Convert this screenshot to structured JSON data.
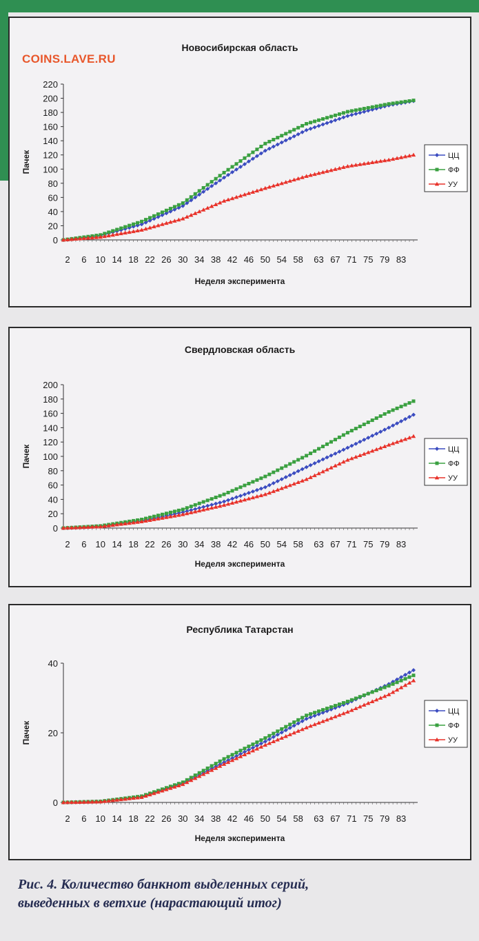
{
  "watermark": "COINS.LAVE.RU",
  "caption": {
    "line1": "Рис. 4. Количество банкнот выделенных серий,",
    "line2": "выведенных в ветхие (нарастающий итог)"
  },
  "colors": {
    "cc": "#3b4cc0",
    "ff": "#3aa040",
    "uu": "#e8322a",
    "green_band": "#2f8f52"
  },
  "chart_data": [
    {
      "type": "line",
      "title": "Новосибирская область",
      "xlabel": "Неделя эксперимента",
      "ylabel": "Пачек",
      "ylim": [
        0,
        220
      ],
      "yticks": [
        0,
        20,
        40,
        60,
        80,
        100,
        120,
        140,
        160,
        180,
        200,
        220
      ],
      "xticklabels": [
        "2",
        "6",
        "10",
        "14",
        "18",
        "22",
        "26",
        "30",
        "34",
        "38",
        "42",
        "46",
        "50",
        "54",
        "58",
        "63",
        "67",
        "71",
        "75",
        "79",
        "83"
      ],
      "x_anchors": [
        1,
        10,
        20,
        30,
        40,
        50,
        60,
        70,
        80,
        86
      ],
      "legend_position": "right",
      "series": [
        {
          "name": "ЦЦ",
          "marker": "diamond",
          "anchors": [
            0,
            6,
            22,
            48,
            88,
            126,
            155,
            175,
            190,
            196
          ]
        },
        {
          "name": "ФФ",
          "marker": "square",
          "anchors": [
            0,
            7,
            26,
            52,
            95,
            136,
            164,
            181,
            192,
            197
          ]
        },
        {
          "name": "УУ",
          "marker": "triangle",
          "anchors": [
            0,
            4,
            14,
            30,
            55,
            73,
            90,
            104,
            113,
            120
          ]
        }
      ]
    },
    {
      "type": "line",
      "title": "Свердловская область",
      "xlabel": "Неделя эксперимента",
      "ylabel": "Пачек",
      "ylim": [
        0,
        200
      ],
      "yticks": [
        0,
        20,
        40,
        60,
        80,
        100,
        120,
        140,
        160,
        180,
        200
      ],
      "xticklabels": [
        "2",
        "6",
        "10",
        "14",
        "18",
        "22",
        "26",
        "30",
        "34",
        "38",
        "42",
        "46",
        "50",
        "54",
        "58",
        "63",
        "67",
        "71",
        "75",
        "79",
        "83"
      ],
      "x_anchors": [
        1,
        10,
        20,
        30,
        40,
        50,
        60,
        70,
        80,
        86
      ],
      "legend_position": "right",
      "series": [
        {
          "name": "ЦЦ",
          "marker": "diamond",
          "anchors": [
            0,
            2,
            10,
            22,
            37,
            57,
            85,
            112,
            140,
            158
          ]
        },
        {
          "name": "ФФ",
          "marker": "square",
          "anchors": [
            0,
            3,
            12,
            26,
            47,
            72,
            101,
            133,
            162,
            177
          ]
        },
        {
          "name": "УУ",
          "marker": "triangle",
          "anchors": [
            0,
            2,
            9,
            19,
            32,
            47,
            68,
            95,
            116,
            128
          ]
        }
      ]
    },
    {
      "type": "line",
      "title": "Республика Татарстан",
      "xlabel": "Неделя эксперимента",
      "ylabel": "Пачек",
      "ylim": [
        0,
        40
      ],
      "yticks": [
        0,
        20,
        40
      ],
      "xticklabels": [
        "2",
        "6",
        "10",
        "14",
        "18",
        "22",
        "26",
        "30",
        "34",
        "38",
        "42",
        "46",
        "50",
        "54",
        "58",
        "63",
        "67",
        "71",
        "75",
        "79",
        "83"
      ],
      "x_anchors": [
        1,
        10,
        20,
        30,
        40,
        50,
        60,
        70,
        80,
        86
      ],
      "legend_position": "right",
      "series": [
        {
          "name": "ЦЦ",
          "marker": "diamond",
          "anchors": [
            0,
            0.3,
            1.6,
            5.5,
            11.5,
            17.5,
            24,
            28.5,
            34,
            38
          ]
        },
        {
          "name": "ФФ",
          "marker": "square",
          "anchors": [
            0,
            0.3,
            1.8,
            5.8,
            12.5,
            18.5,
            25,
            29,
            33.5,
            36.5
          ]
        },
        {
          "name": "УУ",
          "marker": "triangle",
          "anchors": [
            0,
            0.2,
            1.5,
            5.2,
            11,
            16.5,
            21.5,
            26,
            31,
            35
          ]
        }
      ]
    }
  ]
}
